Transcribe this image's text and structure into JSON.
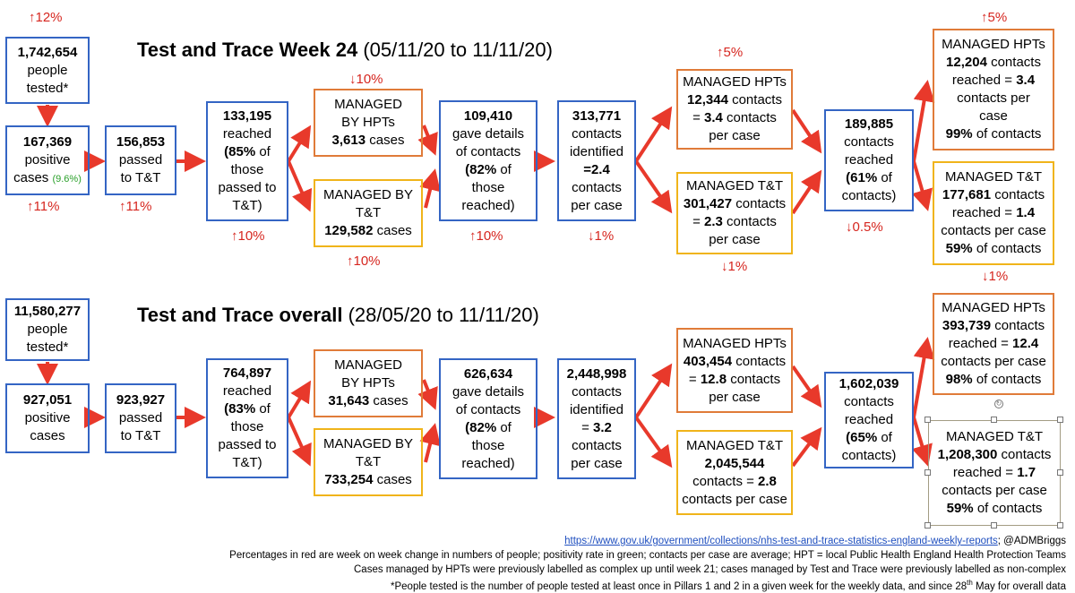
{
  "week": {
    "title_bold": "Test and Trace Week 24",
    "title_dates": " (05/11/20 to 11/11/20)",
    "tested": {
      "number": "1,742,654",
      "line1": "people",
      "line2": "tested*"
    },
    "positive": {
      "number": "167,369",
      "line1": "positive",
      "line2": "cases",
      "rate": "(9.6%)"
    },
    "passed": {
      "number": "156,853",
      "line1": "passed",
      "line2": "to T&T"
    },
    "reached": {
      "number": "133,195",
      "line1": "reached",
      "pct": "(85%",
      "line2": " of",
      "line3": "those",
      "line4": "passed to",
      "line5": "T&T)"
    },
    "hpt_cases": {
      "line1": "MANAGED",
      "line2": "BY HPTs",
      "number": "3,613",
      "unit": " cases"
    },
    "tt_cases": {
      "line1": "MANAGED BY",
      "line2": "T&T",
      "number": "129,582",
      "unit": " cases"
    },
    "gave": {
      "number": "109,410",
      "line1": "gave details",
      "line2": "of contacts",
      "pct": "(82%",
      "line3": " of",
      "line4": "those",
      "line5": "reached)"
    },
    "contacts": {
      "number": "313,771",
      "line1": "contacts",
      "line2": "identified",
      "ratio": "=2.4",
      "line3": "contacts",
      "line4": "per case"
    },
    "hpt_contacts": {
      "line1": "MANAGED HPTs",
      "number": "12,344",
      "unit": " contacts",
      "ratio_prefix": "= ",
      "ratio": "3.4",
      "ratio_suffix": " contacts",
      "line4": "per case"
    },
    "tt_contacts": {
      "line1": "MANAGED T&T",
      "number": "301,427",
      "unit": " contacts",
      "ratio_prefix": "= ",
      "ratio": "2.3",
      "ratio_suffix": " contacts",
      "line4": "per case"
    },
    "reached_contacts": {
      "number": "189,885",
      "line1": "contacts",
      "line2": "reached",
      "pct": "(61%",
      "line3": " of",
      "line4": "contacts)"
    },
    "hpt_reached": {
      "line1": "MANAGED HPTs",
      "number": "12,204",
      "unit": " contacts",
      "reached_prefix": "reached = ",
      "ratio": "3.4",
      "line3": "contacts per",
      "line4": "case",
      "pct": "99%",
      "pct_suffix": " of contacts"
    },
    "tt_reached": {
      "line1": "MANAGED T&T",
      "number": "177,681",
      "unit": " contacts",
      "reached_prefix": "reached = ",
      "ratio": "1.4",
      "line3": "contacts per case",
      "pct": "59%",
      "pct_suffix": " of contacts"
    },
    "changes": {
      "tested": "↑12%",
      "positive": "↑11%",
      "passed": "↑11%",
      "reached": "↑10%",
      "hpt_cases": "↓10%",
      "tt_cases": "↑10%",
      "gave": "↑10%",
      "contacts": "↓1%",
      "hpt_contacts": "↑5%",
      "tt_contacts": "↓1%",
      "reached_contacts": "↓0.5%",
      "hpt_reached": "↑5%",
      "tt_reached": "↓1%"
    }
  },
  "overall": {
    "title_bold": "Test and Trace overall",
    "title_dates": " (28/05/20 to 11/11/20)",
    "tested": {
      "number": "11,580,277",
      "line1": "people",
      "line2": "tested*"
    },
    "positive": {
      "number": "927,051",
      "line1": "positive",
      "line2": "cases"
    },
    "passed": {
      "number": "923,927",
      "line1": "passed",
      "line2": "to T&T"
    },
    "reached": {
      "number": "764,897",
      "line1": "reached",
      "pct": "(83%",
      "line2": " of",
      "line3": "those",
      "line4": "passed to",
      "line5": "T&T)"
    },
    "hpt_cases": {
      "line1": "MANAGED",
      "line2": "BY HPTs",
      "number": "31,643",
      "unit": " cases"
    },
    "tt_cases": {
      "line1": "MANAGED BY",
      "line2": "T&T",
      "number": "733,254",
      "unit": " cases"
    },
    "gave": {
      "number": "626,634",
      "line1": "gave details",
      "line2": "of contacts",
      "pct": "(82%",
      "line3": " of",
      "line4": "those",
      "line5": "reached)"
    },
    "contacts": {
      "number": "2,448,998",
      "line1": "contacts",
      "line2": "identified",
      "ratio_prefix": "= ",
      "ratio": "3.2",
      "line3": "contacts",
      "line4": "per case"
    },
    "hpt_contacts": {
      "line1": "MANAGED HPTs",
      "number": "403,454",
      "unit": " contacts",
      "ratio_prefix": "= ",
      "ratio": "12.8",
      "ratio_suffix": " contacts",
      "line4": "per case"
    },
    "tt_contacts": {
      "line1": "MANAGED T&T",
      "number": "2,045,544",
      "line3_prefix": "contacts = ",
      "ratio": "2.8",
      "line4": "contacts per case"
    },
    "reached_contacts": {
      "number": "1,602,039",
      "line1": "contacts",
      "line2": "reached",
      "pct": "(65%",
      "line3": " of",
      "line4": "contacts)"
    },
    "hpt_reached": {
      "line1": "MANAGED HPTs",
      "number": "393,739",
      "unit": " contacts",
      "reached_prefix": "reached = ",
      "ratio": "12.4",
      "line3": "contacts per case",
      "pct": "98%",
      "pct_suffix": " of contacts"
    },
    "tt_reached": {
      "line1": "MANAGED T&T",
      "number": "1,208,300",
      "unit": " contacts",
      "reached_prefix": "reached = ",
      "ratio": "1.7",
      "line3": "contacts per case",
      "pct": "59%",
      "pct_suffix": " of contacts"
    }
  },
  "footer": {
    "link": "https://www.gov.uk/government/collections/nhs-test-and-trace-statistics-england-weekly-reports",
    "handle": "; @ADMBriggs",
    "note1": "Percentages in red are week on week change in numbers of people; positivity rate in green; contacts per case are average; HPT = local Public Health England Health Protection Teams",
    "note2": "Cases managed by HPTs were previously labelled as complex up until week 21; cases managed by Test and Trace were previously labelled as non-complex",
    "note3_a": "*People tested is the number of people tested at least once in Pillars 1 and 2 in a given week for the weekly data, and since 28",
    "note3_sup": "th",
    "note3_b": " May for overall data"
  },
  "colors": {
    "blue_box": "#3465c4",
    "orange_box": "#e07b39",
    "yellow_box": "#f0b41a",
    "arrow": "#e8392b",
    "change": "#d6261f",
    "positivity": "#2aa02a",
    "link": "#1f4fbf"
  }
}
